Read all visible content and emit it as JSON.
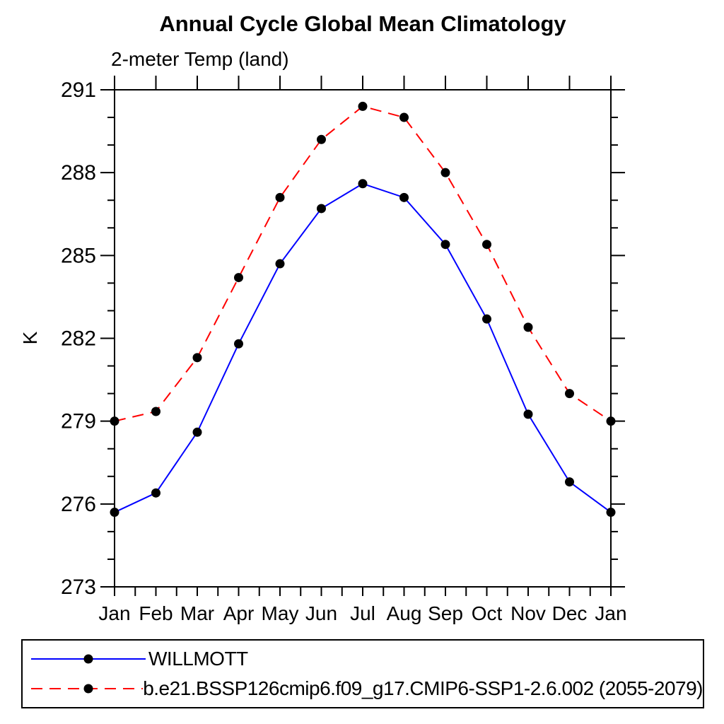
{
  "chart": {
    "title": "Annual Cycle Global Mean Climatology",
    "subtitle": "2-meter Temp (land)",
    "y_axis_label": "K"
  },
  "legend": {
    "entries": [
      {
        "label": "WILLMOTT",
        "color": "#0000ff",
        "style": "solid",
        "marker": "circle",
        "marker_color": "#000000"
      },
      {
        "label": "b.e21.BSSP126cmip6.f09_g17.CMIP6-SSP1-2.6.002 (2055-2079)",
        "color": "#ff0000",
        "style": "dashed",
        "marker": "circle",
        "marker_color": "#000000"
      }
    ]
  },
  "chart_data": {
    "type": "line",
    "title": "Annual Cycle Global Mean Climatology",
    "subtitle": "2-meter Temp (land)",
    "xlabel": "",
    "ylabel": "K",
    "categories": [
      "Jan",
      "Feb",
      "Mar",
      "Apr",
      "May",
      "Jun",
      "Jul",
      "Aug",
      "Sep",
      "Oct",
      "Nov",
      "Dec",
      "Jan"
    ],
    "series": [
      {
        "name": "WILLMOTT",
        "color": "#0000ff",
        "line_style": "solid",
        "marker": "circle",
        "marker_color": "#000000",
        "values": [
          275.7,
          276.4,
          278.6,
          281.8,
          284.7,
          286.7,
          287.6,
          287.1,
          285.4,
          282.7,
          279.25,
          276.8,
          275.7
        ]
      },
      {
        "name": "b.e21.BSSP126cmip6.f09_g17.CMIP6-SSP1-2.6.002 (2055-2079)",
        "color": "#ff0000",
        "line_style": "dashed",
        "marker": "circle",
        "marker_color": "#000000",
        "values": [
          279.0,
          279.35,
          281.3,
          284.2,
          287.1,
          289.2,
          290.4,
          290.0,
          288.0,
          285.4,
          282.4,
          280.0,
          279.0
        ]
      }
    ],
    "ylim": [
      273,
      291
    ],
    "yticks_major": [
      273,
      276,
      279,
      282,
      285,
      288,
      291
    ],
    "ytick_minor_step": 1,
    "grid": false,
    "legend_position": "bottom"
  }
}
